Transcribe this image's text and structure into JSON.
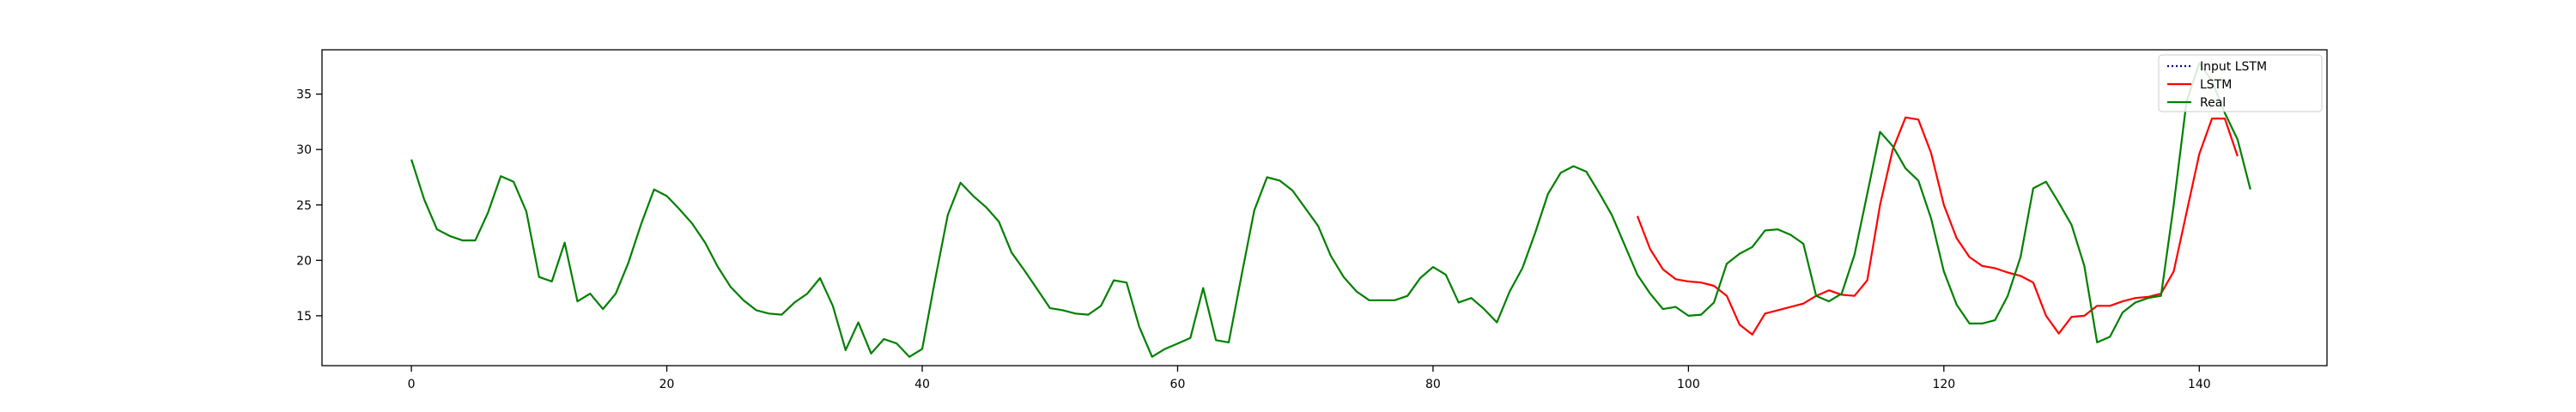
{
  "chart_data": {
    "type": "line",
    "title": "",
    "xlabel": "",
    "ylabel": "",
    "xlim": [
      -7,
      150
    ],
    "ylim": [
      10.5,
      39
    ],
    "xticks": [
      0,
      20,
      40,
      60,
      80,
      100,
      120,
      140
    ],
    "yticks": [
      15,
      20,
      25,
      30,
      35
    ],
    "grid": false,
    "legend_position": "top-right",
    "series": [
      {
        "name": "Input LSTM",
        "color": "#00008b",
        "style": "dotted",
        "x0": 0,
        "values": []
      },
      {
        "name": "LSTM",
        "color": "#ff0000",
        "style": "solid",
        "x0": 96,
        "values": [
          24.0,
          21.0,
          19.2,
          18.3,
          18.1,
          18.0,
          17.7,
          16.8,
          14.2,
          13.3,
          15.2,
          15.5,
          15.8,
          16.1,
          16.8,
          17.3,
          16.9,
          16.8,
          18.2,
          25.0,
          30.0,
          32.9,
          32.7,
          29.7,
          25.0,
          22.0,
          20.3,
          19.5,
          19.3,
          18.9,
          18.6,
          18.0,
          15.0,
          13.4,
          14.9,
          15.0,
          15.9,
          15.9,
          16.3,
          16.6,
          16.7,
          17.0,
          19.0,
          24.3,
          29.6,
          32.8,
          32.8,
          29.4
        ]
      },
      {
        "name": "Real",
        "color": "#008000",
        "style": "solid",
        "x0": 0,
        "values": [
          29.1,
          25.5,
          22.8,
          22.2,
          21.8,
          21.8,
          24.3,
          27.6,
          27.1,
          24.4,
          18.5,
          18.1,
          21.6,
          16.3,
          17.0,
          15.6,
          17.0,
          19.8,
          23.3,
          26.4,
          25.8,
          24.6,
          23.3,
          21.6,
          19.4,
          17.6,
          16.4,
          15.5,
          15.2,
          15.1,
          16.2,
          17.0,
          18.4,
          15.9,
          11.9,
          14.4,
          11.6,
          12.9,
          12.5,
          11.3,
          12.0,
          18.2,
          24.1,
          27.0,
          25.8,
          24.8,
          23.5,
          20.7,
          19.1,
          17.4,
          15.7,
          15.5,
          15.2,
          15.1,
          15.9,
          18.2,
          18.0,
          14.0,
          11.3,
          12.0,
          12.5,
          13.0,
          17.5,
          12.8,
          12.6,
          18.6,
          24.5,
          27.5,
          27.2,
          26.3,
          24.7,
          23.1,
          20.4,
          18.5,
          17.2,
          16.4,
          16.4,
          16.4,
          16.8,
          18.4,
          19.4,
          18.7,
          16.2,
          16.6,
          15.6,
          14.4,
          17.2,
          19.3,
          22.5,
          26.0,
          27.9,
          28.5,
          28.0,
          26.1,
          24.1,
          21.4,
          18.7,
          17.0,
          15.6,
          15.8,
          15.0,
          15.1,
          16.2,
          19.7,
          20.6,
          21.2,
          22.7,
          22.8,
          22.3,
          21.5,
          16.8,
          16.3,
          17.0,
          20.5,
          26.0,
          31.6,
          30.3,
          28.3,
          27.2,
          23.8,
          19.0,
          16.0,
          14.3,
          14.3,
          14.6,
          16.8,
          20.3,
          26.5,
          27.1,
          25.2,
          23.2,
          19.5,
          12.6,
          13.1,
          15.3,
          16.2,
          16.6,
          16.8,
          25.0,
          34.3,
          37.8,
          36.2,
          33.3,
          30.9,
          26.4
        ]
      }
    ]
  }
}
